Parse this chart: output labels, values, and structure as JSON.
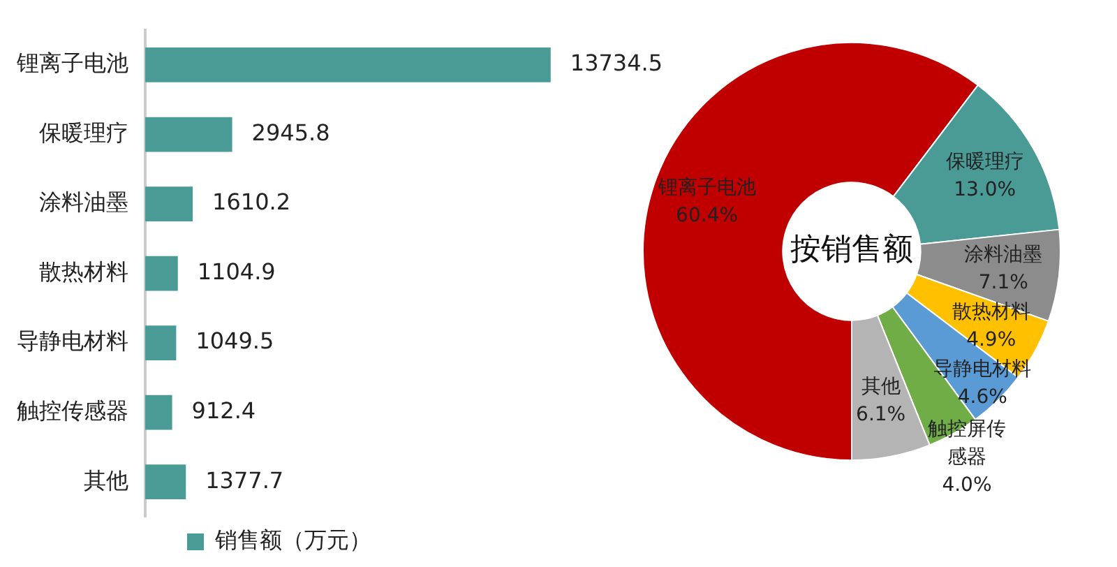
{
  "chart_data": [
    {
      "type": "bar",
      "orientation": "horizontal",
      "categories": [
        "锂离子电池",
        "保暖理疗",
        "涂料油墨",
        "散热材料",
        "导静电材料",
        "触控传感器",
        "其他"
      ],
      "series": [
        {
          "name": "销售额（万元）",
          "color": "#4a9a96",
          "values": [
            13734.5,
            2945.8,
            1610.2,
            1104.9,
            1049.5,
            912.4,
            1377.7
          ]
        }
      ],
      "data_labels": true,
      "legend": "bottom",
      "grid": false
    },
    {
      "type": "donut",
      "title": "按销售额",
      "categories": [
        "锂离子电池",
        "保暖理疗",
        "涂料油墨",
        "散热材料",
        "导静电材料",
        "触控屏传感器",
        "其他"
      ],
      "values": [
        60.4,
        13.0,
        7.1,
        4.9,
        4.6,
        4.0,
        6.1
      ],
      "value_labels": [
        "60.4%",
        "13.0%",
        "7.1%",
        "4.9%",
        "4.6%",
        "4.0%",
        "6.1%"
      ],
      "colors": [
        "#c00000",
        "#4a9a96",
        "#8c8c8c",
        "#ffc000",
        "#5b9bd5",
        "#70ad47",
        "#b4b4b4"
      ],
      "legend": false
    }
  ]
}
